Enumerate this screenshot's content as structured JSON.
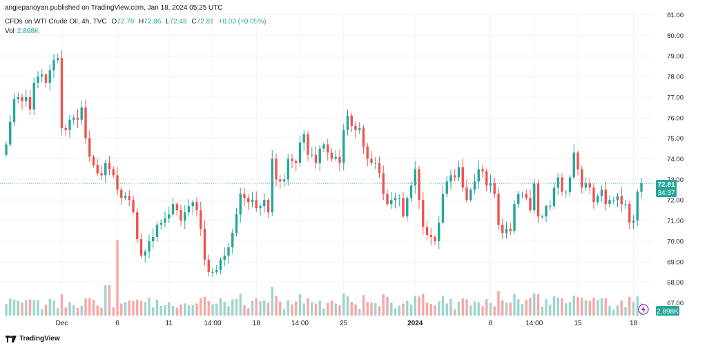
{
  "header": {
    "published_by": "angiepanoyan published on TradingView.com, Jan 18, 2024 05:25 UTC"
  },
  "legend": {
    "symbol": "CFDs on WTI Crude Oil, 4h, TVC",
    "open_label": "O",
    "open": "72.78",
    "high_label": "H",
    "high": "72.86",
    "low_label": "L",
    "low": "72.48",
    "close_label": "C",
    "close": "72.81",
    "change": "+0.03 (+0.05%)"
  },
  "volume_legend": {
    "label": "Vol",
    "value": "2.898K"
  },
  "price_badge": {
    "price": "72.81",
    "countdown": "34:37"
  },
  "volume_badge": "2.898K",
  "footer": {
    "logo_text": "TradingView"
  },
  "colors": {
    "up": "#26a69a",
    "down": "#ef5350",
    "vol_up": "#9fd4ce",
    "vol_down": "#f5a8a6",
    "grid": "#f0f3fa",
    "axis_text": "#131722"
  },
  "chart_data": {
    "type": "candlestick",
    "y_axis_ticks": [
      "81.00",
      "80.00",
      "79.00",
      "78.00",
      "77.00",
      "76.00",
      "75.00",
      "74.00",
      "73.00",
      "72.00",
      "71.00",
      "70.00",
      "69.00",
      "68.00",
      "67.00"
    ],
    "ylim": [
      66.8,
      81.1
    ],
    "x_tick_labels": [
      {
        "label": "Dec",
        "bar": 14
      },
      {
        "label": "6",
        "bar": 28
      },
      {
        "label": "11",
        "bar": 41
      },
      {
        "label": "14:00",
        "bar": 52
      },
      {
        "label": "18",
        "bar": 63
      },
      {
        "label": "14:00",
        "bar": 74
      },
      {
        "label": "25",
        "bar": 85
      },
      {
        "label": "2024",
        "bar": 103
      },
      {
        "label": "8",
        "bar": 122
      },
      {
        "label": "14:00",
        "bar": 133
      },
      {
        "label": "15",
        "bar": 144
      },
      {
        "label": "18",
        "bar": 158
      }
    ],
    "current_price": 72.81,
    "closes": [
      74.7,
      75.8,
      76.9,
      77.0,
      76.8,
      77.0,
      76.4,
      77.7,
      78.0,
      78.1,
      77.7,
      78.3,
      78.8,
      78.9,
      75.5,
      75.4,
      75.9,
      76.0,
      75.9,
      76.5,
      75.0,
      74.1,
      73.7,
      73.3,
      73.2,
      73.8,
      73.5,
      73.2,
      72.5,
      72.1,
      72.2,
      72.0,
      71.4,
      70.1,
      69.3,
      69.5,
      70.0,
      70.2,
      70.8,
      70.9,
      71.1,
      71.3,
      71.8,
      71.5,
      71.0,
      71.4,
      71.7,
      71.9,
      71.5,
      70.6,
      69.1,
      68.5,
      68.5,
      68.6,
      69.1,
      69.3,
      69.7,
      70.4,
      71.3,
      72.3,
      72.1,
      71.9,
      72.0,
      71.6,
      71.7,
      72.0,
      71.4,
      74.0,
      73.0,
      72.9,
      73.0,
      74.0,
      73.9,
      73.8,
      74.8,
      75.2,
      74.2,
      74.2,
      73.8,
      74.5,
      74.7,
      74.3,
      74.0,
      74.1,
      73.8,
      75.4,
      76.1,
      75.6,
      75.4,
      75.5,
      74.6,
      74.0,
      73.8,
      73.8,
      73.3,
      72.3,
      71.8,
      72.0,
      72.1,
      72.1,
      71.2,
      72.1,
      72.7,
      73.5,
      72.0,
      70.7,
      70.3,
      70.2,
      70.0,
      70.9,
      72.3,
      72.9,
      73.2,
      73.1,
      73.6,
      72.6,
      72.0,
      72.5,
      72.9,
      73.5,
      73.4,
      72.7,
      72.8,
      72.3,
      70.8,
      70.4,
      70.6,
      70.5,
      71.8,
      72.3,
      72.3,
      72.1,
      71.5,
      72.8,
      71.2,
      71.2,
      71.7,
      71.7,
      72.6,
      73.1,
      72.4,
      72.4,
      73.1,
      74.3,
      73.5,
      72.6,
      72.8,
      72.6,
      71.9,
      72.2,
      72.5,
      71.8,
      72.0,
      72.0,
      72.2,
      71.8,
      71.8,
      70.9,
      71.0,
      72.4,
      72.81
    ],
    "volume_range": [
      0,
      1
    ]
  }
}
